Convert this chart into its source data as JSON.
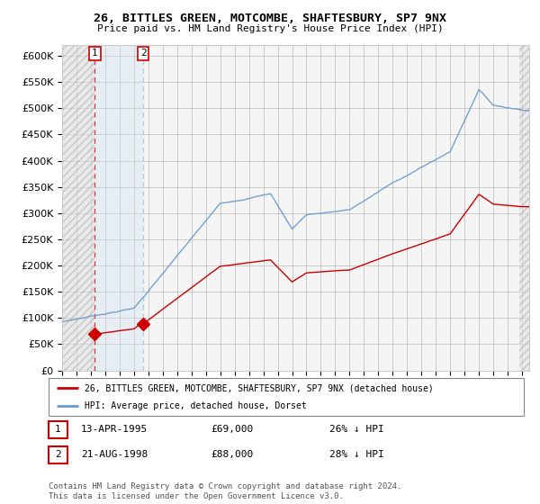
{
  "title1": "26, BITTLES GREEN, MOTCOMBE, SHAFTESBURY, SP7 9NX",
  "title2": "Price paid vs. HM Land Registry's House Price Index (HPI)",
  "legend_line1": "26, BITTLES GREEN, MOTCOMBE, SHAFTESBURY, SP7 9NX (detached house)",
  "legend_line2": "HPI: Average price, detached house, Dorset",
  "footer1": "Contains HM Land Registry data © Crown copyright and database right 2024.",
  "footer2": "This data is licensed under the Open Government Licence v3.0.",
  "sale1_date_num": 1995.28,
  "sale1_label": "1",
  "sale1_date_str": "13-APR-1995",
  "sale1_price": 69000,
  "sale1_hpi_pct": "26% ↓ HPI",
  "sale2_date_num": 1998.64,
  "sale2_label": "2",
  "sale2_date_str": "21-AUG-1998",
  "sale2_price": 88000,
  "sale2_hpi_pct": "28% ↓ HPI",
  "ylim_min": 0,
  "ylim_max": 620000,
  "xlim_min": 1993.0,
  "xlim_max": 2025.5,
  "property_color": "#cc0000",
  "hpi_color": "#6699cc",
  "grid_color": "#bbbbbb",
  "bg_color": "#ffffff",
  "plot_bg_color": "#f5f5f5"
}
